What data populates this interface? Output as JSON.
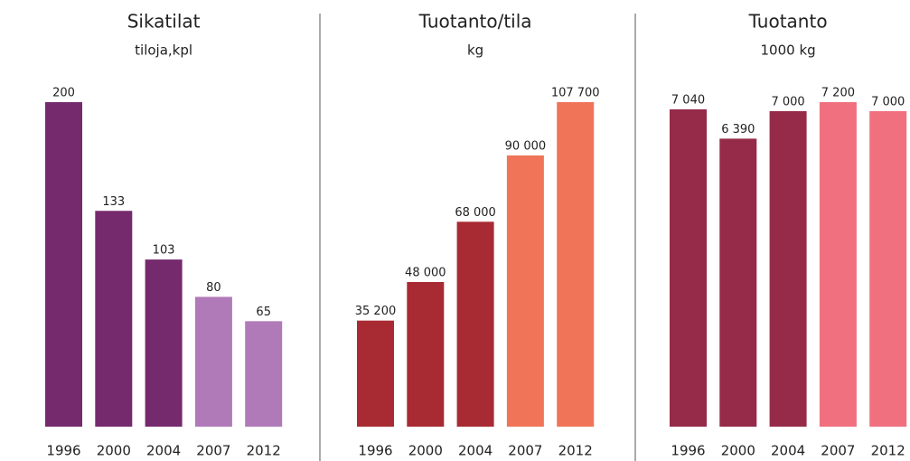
{
  "chart_data": [
    {
      "type": "bar",
      "title": "Sikatilat",
      "subtitle": "tiloja,kpl",
      "categories": [
        "1996",
        "2000",
        "2004",
        "2007",
        "2012"
      ],
      "values": [
        200,
        133,
        103,
        80,
        65
      ],
      "colors": [
        "#762a6e",
        "#762a6e",
        "#762a6e",
        "#b07ab8",
        "#b07ab8"
      ]
    },
    {
      "type": "bar",
      "title": "Tuotanto/tila",
      "subtitle": "kg",
      "categories": [
        "1996",
        "2000",
        "2004",
        "2007",
        "2012"
      ],
      "values": [
        35200,
        48000,
        68000,
        90000,
        107700
      ],
      "value_labels": [
        "35 200",
        "48 000",
        "68 000",
        "90 000",
        "107 700"
      ],
      "colors": [
        "#a82a33",
        "#a82a33",
        "#a82a33",
        "#f07458",
        "#f07458"
      ]
    },
    {
      "type": "bar",
      "title": "Tuotanto",
      "subtitle": "1000 kg",
      "categories": [
        "1996",
        "2000",
        "2004",
        "2007",
        "2012"
      ],
      "values": [
        7040,
        6390,
        7000,
        7200,
        7000
      ],
      "value_labels": [
        "7 040",
        "6 390",
        "7 000",
        "7 200",
        "7 000"
      ],
      "colors": [
        "#952b48",
        "#952b48",
        "#952b48",
        "#f07080",
        "#f07080"
      ]
    }
  ]
}
